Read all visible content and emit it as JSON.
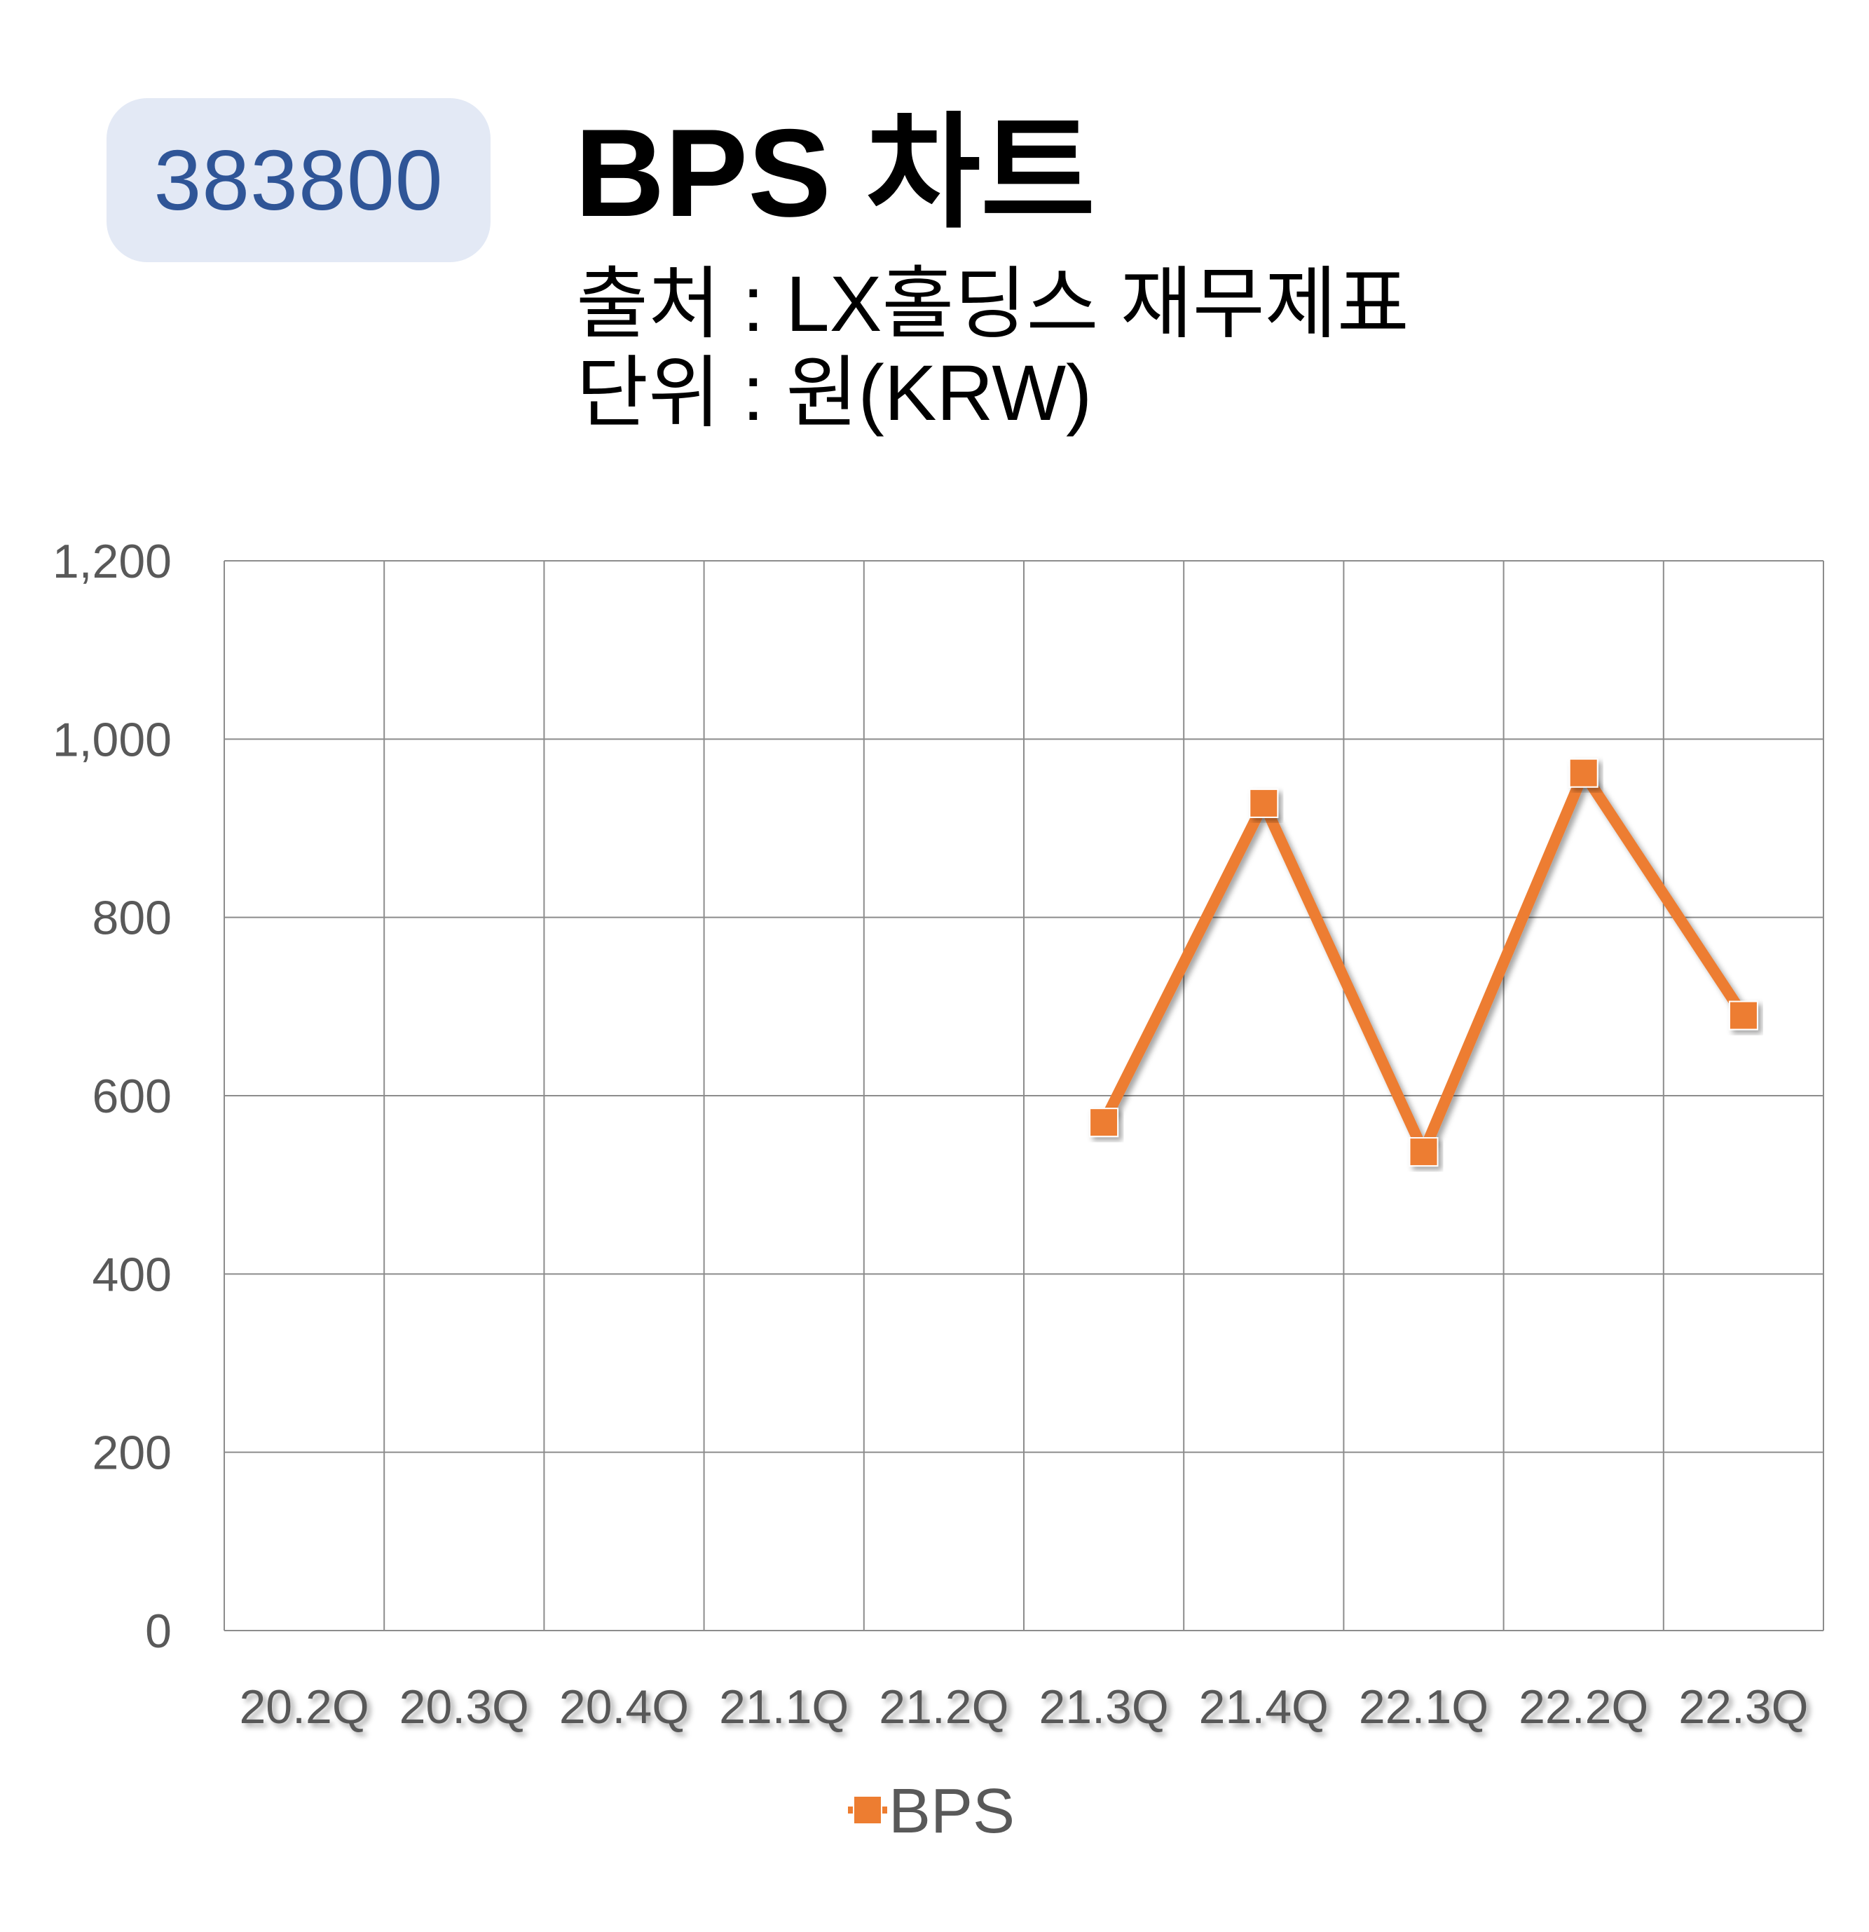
{
  "header": {
    "code": "383800",
    "title": "BPS 차트",
    "source": "출처 : LX홀딩스 재무제표",
    "unit": "단위 : 원(KRW)"
  },
  "colors": {
    "series": "#ed7d31",
    "grid": "#8c8c8c",
    "tick_text": "#595959",
    "badge_bg": "#e3e9f5",
    "badge_text": "#2f5597"
  },
  "chart_data": {
    "type": "line",
    "categories": [
      "20.2Q",
      "20.3Q",
      "20.4Q",
      "21.1Q",
      "21.2Q",
      "21.3Q",
      "21.4Q",
      "22.1Q",
      "22.2Q",
      "22.3Q"
    ],
    "series": [
      {
        "name": "BPS",
        "values": [
          null,
          null,
          null,
          null,
          null,
          570,
          928,
          537,
          962,
          690
        ],
        "marker": "square"
      }
    ],
    "ylim": [
      0,
      1200
    ],
    "yticks": [
      0,
      200,
      400,
      600,
      800,
      1000,
      1200
    ],
    "ytick_labels": [
      "0",
      "200",
      "400",
      "600",
      "800",
      "1,000",
      "1,200"
    ],
    "grid": true,
    "legend": "bottom-center"
  }
}
